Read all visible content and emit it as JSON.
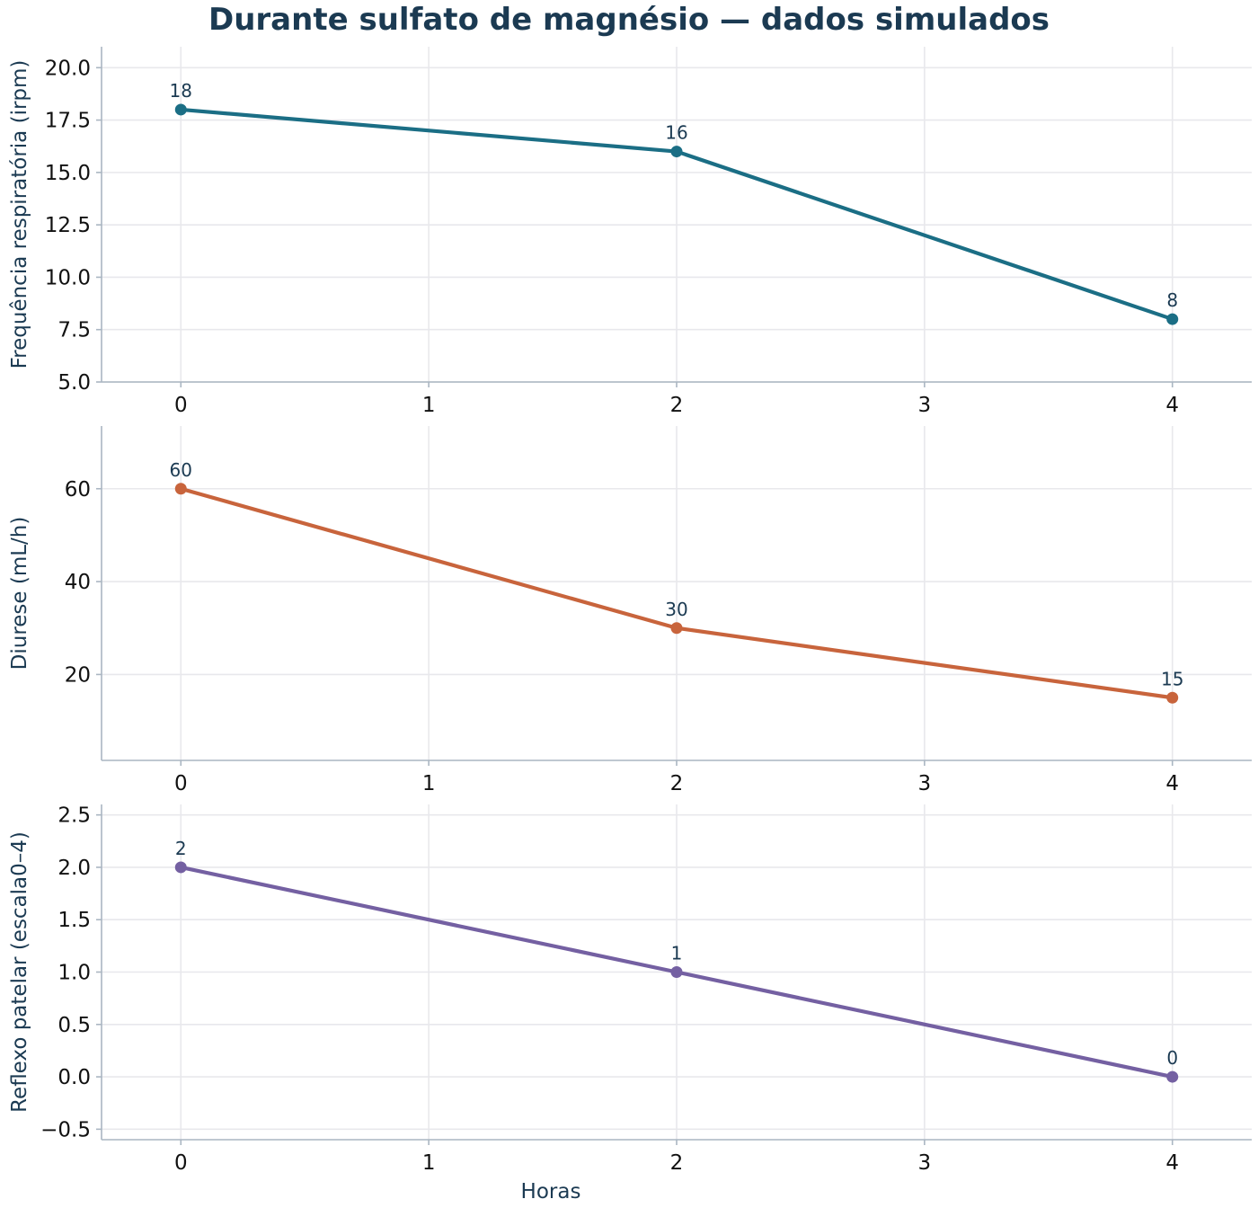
{
  "title": "Durante sulfato de magnésio — dados simulados",
  "chart_data": [
    {
      "type": "line",
      "x": [
        0,
        2,
        4
      ],
      "series": [
        {
          "values": [
            18,
            16,
            8
          ],
          "color": "#1b6e85"
        }
      ],
      "data_labels": [
        "18",
        "16",
        "8"
      ],
      "xlabel": "",
      "ylabel": "Frequência respiratória (irpm)",
      "xlim": [
        -0.32,
        4.32
      ],
      "ylim": [
        5.0,
        21.0
      ],
      "xticks": [
        0,
        1,
        2,
        3,
        4
      ],
      "xtick_labels": [
        "0",
        "1",
        "2",
        "3",
        "4"
      ],
      "yticks": [
        5.0,
        7.5,
        10.0,
        12.5,
        15.0,
        17.5,
        20.0
      ],
      "ytick_labels": [
        "5.0",
        "7.5",
        "10.0",
        "12.5",
        "15.0",
        "17.5",
        "20.0"
      ],
      "grid": true
    },
    {
      "type": "line",
      "x": [
        0,
        2,
        4
      ],
      "series": [
        {
          "values": [
            60,
            30,
            15
          ],
          "color": "#c8643c"
        }
      ],
      "data_labels": [
        "60",
        "30",
        "15"
      ],
      "xlabel": "",
      "ylabel": "Diurese (mL/h)",
      "xlim": [
        -0.32,
        4.32
      ],
      "ylim": [
        1.5,
        73.5
      ],
      "xticks": [
        0,
        1,
        2,
        3,
        4
      ],
      "xtick_labels": [
        "0",
        "1",
        "2",
        "3",
        "4"
      ],
      "yticks": [
        20,
        40,
        60
      ],
      "ytick_labels": [
        "20",
        "40",
        "60"
      ],
      "grid": true
    },
    {
      "type": "line",
      "x": [
        0,
        2,
        4
      ],
      "series": [
        {
          "values": [
            2,
            1,
            0
          ],
          "color": "#7460a2"
        }
      ],
      "data_labels": [
        "2",
        "1",
        "0"
      ],
      "xlabel": "Horas",
      "ylabel": "Reflexo patelar (escala0–4)",
      "xlim": [
        -0.32,
        4.32
      ],
      "ylim": [
        -0.6,
        2.6
      ],
      "xticks": [
        0,
        1,
        2,
        3,
        4
      ],
      "xtick_labels": [
        "0",
        "1",
        "2",
        "3",
        "4"
      ],
      "yticks": [
        -0.5,
        0.0,
        0.5,
        1.0,
        1.5,
        2.0,
        2.5
      ],
      "ytick_labels": [
        "−0.5",
        "0.0",
        "0.5",
        "1.0",
        "1.5",
        "2.0",
        "2.5"
      ],
      "grid": true
    }
  ]
}
